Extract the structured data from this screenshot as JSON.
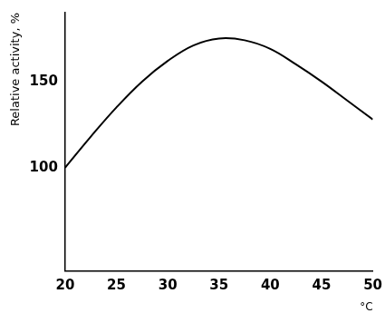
{
  "chart_data": {
    "type": "line",
    "x_label": "°C",
    "y_label": "Relative activity, %",
    "x": [
      20,
      22.5,
      25,
      27.5,
      30,
      32.5,
      35,
      37.5,
      40,
      42.5,
      45,
      47.5,
      50
    ],
    "values": [
      100,
      118,
      135,
      150,
      162,
      171,
      175,
      174,
      169,
      160,
      150,
      139,
      128
    ],
    "color": "#000000",
    "xlim": [
      20,
      50
    ],
    "xticks": [
      20,
      25,
      30,
      35,
      40,
      45,
      50
    ],
    "ylim": [
      40,
      190
    ],
    "yticks": [
      100,
      150
    ],
    "grid": false
  }
}
